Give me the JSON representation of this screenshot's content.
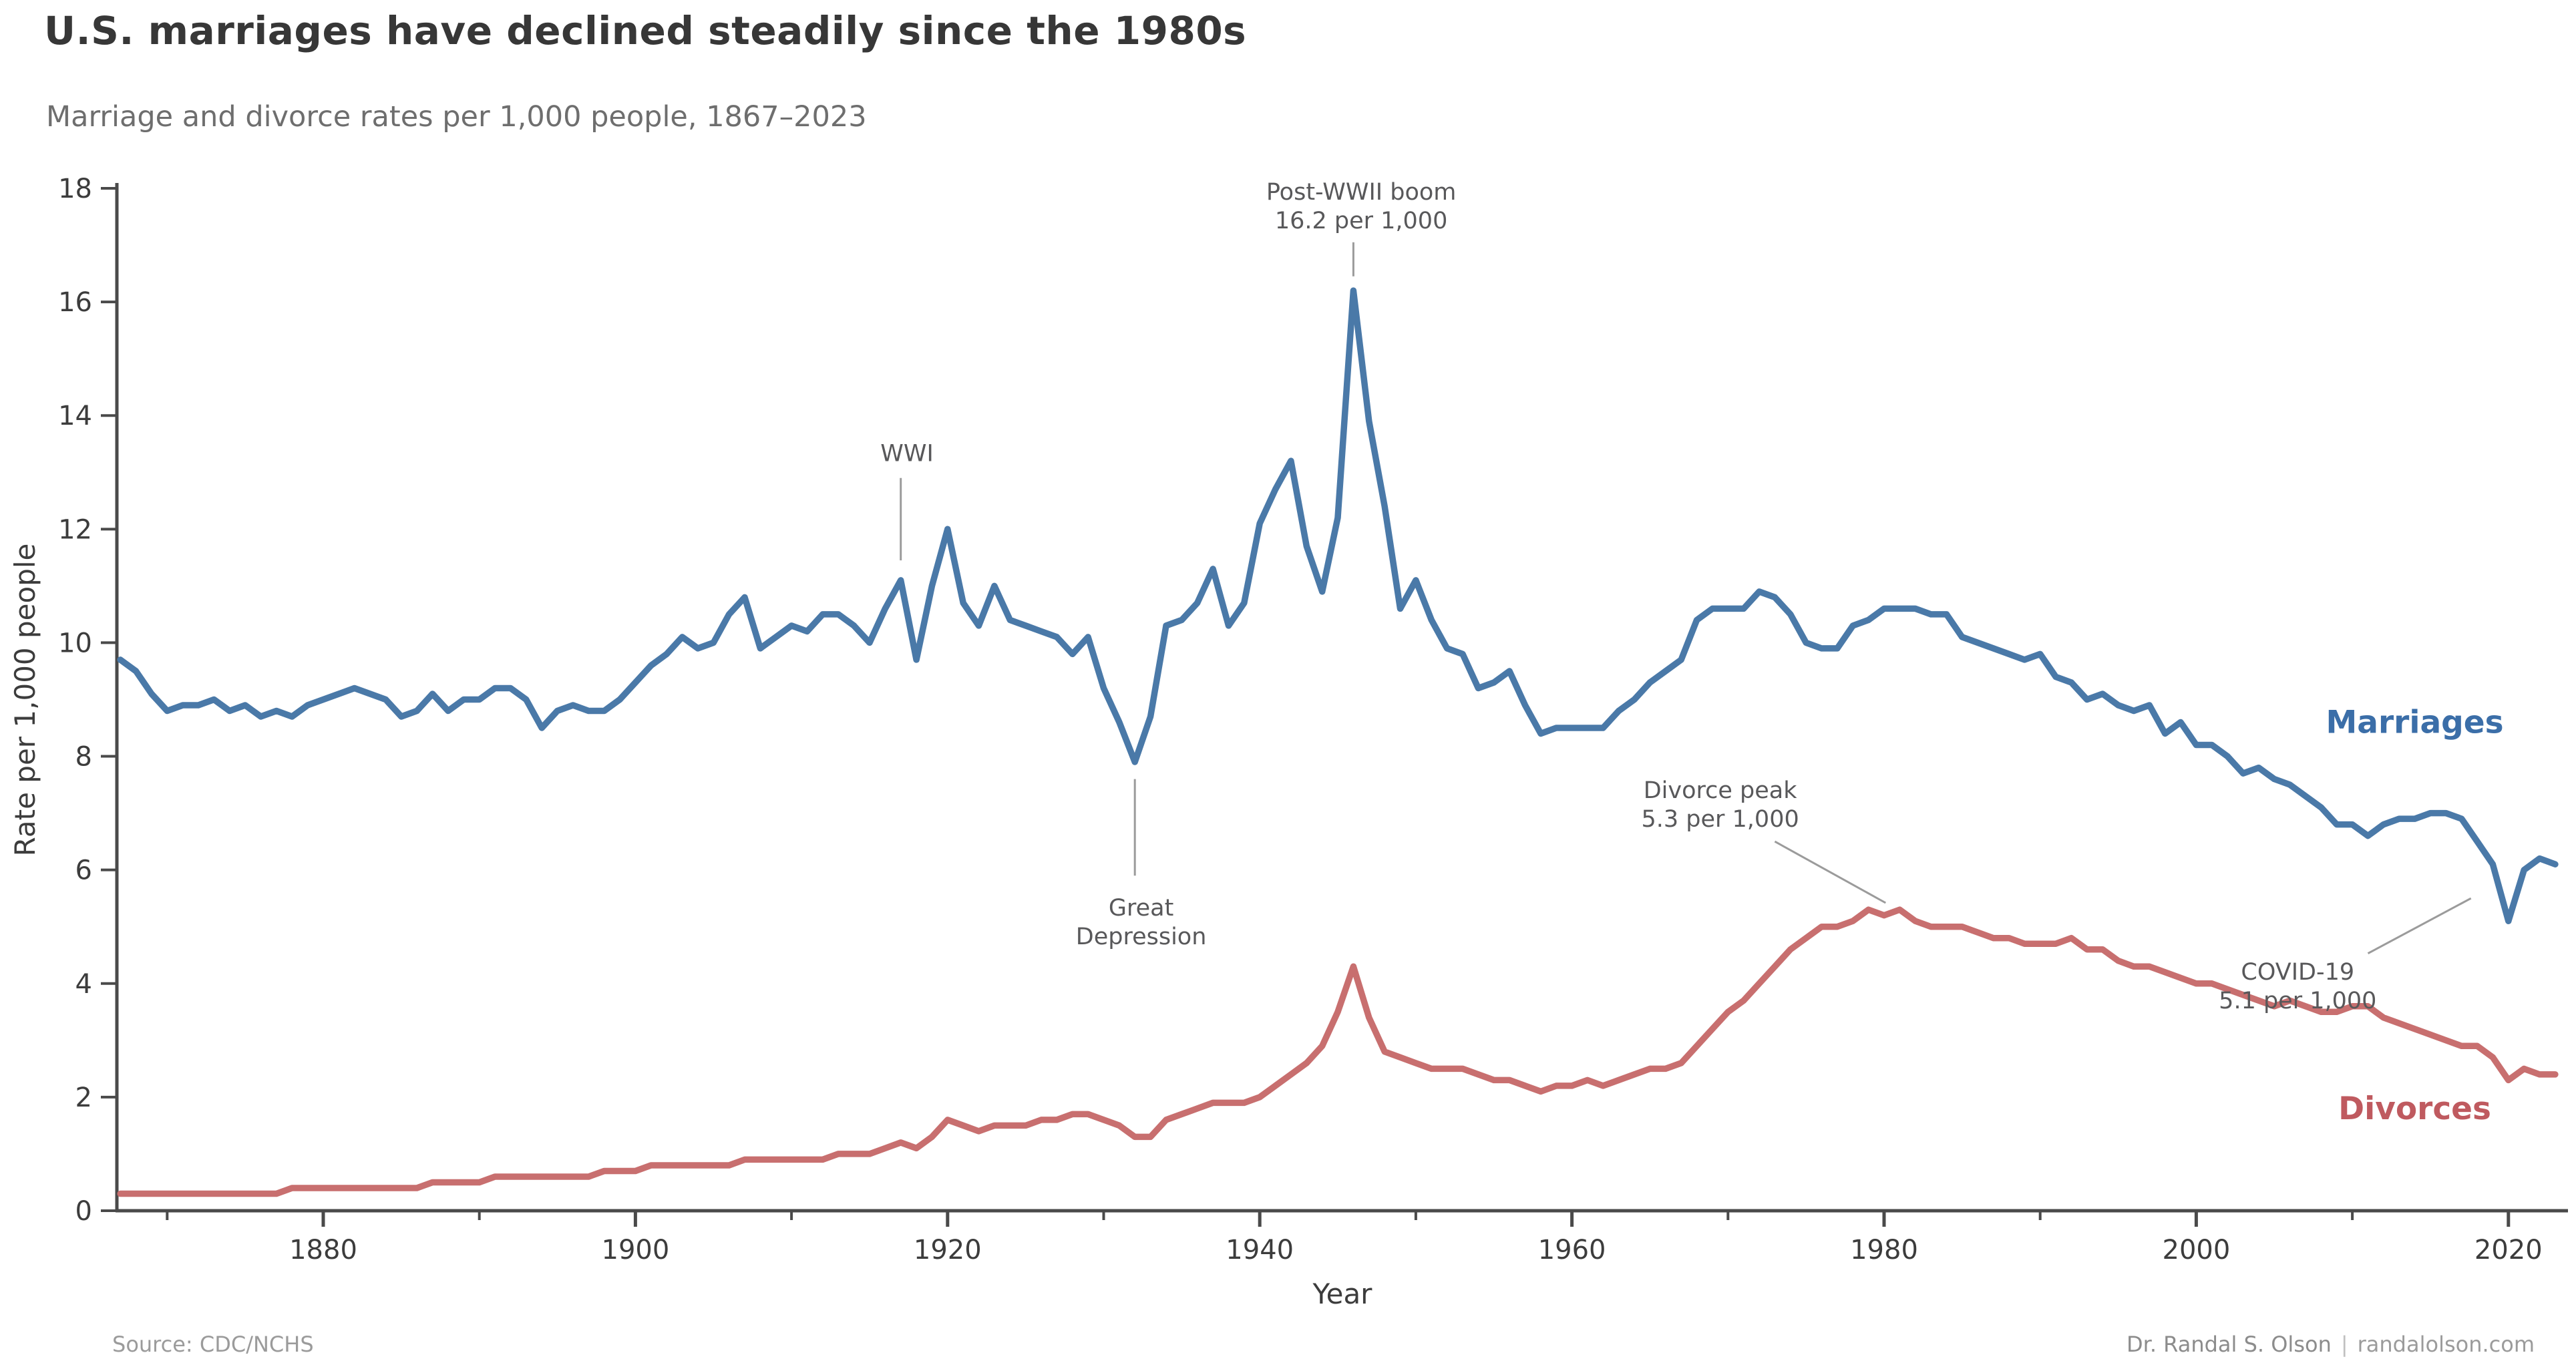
{
  "header": {
    "title": "U.S. marriages have declined steadily since the 1980s",
    "subtitle": "Marriage and divorce rates per 1,000 people, 1867–2023"
  },
  "footer": {
    "source": "Source: CDC/NCHS",
    "credit_name": "Dr. Randal S. Olson",
    "credit_sep": "|",
    "credit_site": "randalolson.com"
  },
  "colors": {
    "marriages": "#4a79a8",
    "marriages_label": "#3b6ea8",
    "divorces": "#c86f6f",
    "divorces_label": "#bf5a5f",
    "axis": "#4a4a4a",
    "tick_label": "#3c3c3c",
    "annotation_text": "#58585a",
    "leader_line": "#9b9b9b"
  },
  "chart_data": {
    "type": "line",
    "title": "U.S. marriages have declined steadily since the 1980s",
    "subtitle": "Marriage and divorce rates per 1,000 people, 1867–2023",
    "xlabel": "Year",
    "ylabel": "Rate per 1,000 people",
    "x_range": [
      1867,
      2023
    ],
    "x_step": 1,
    "ylim": [
      0,
      18
    ],
    "grid": false,
    "legend_position": "inline-end-labels",
    "x_major_ticks": [
      1880,
      1900,
      1920,
      1940,
      1960,
      1980,
      2000,
      2020
    ],
    "x_minor_ticks": [
      1870,
      1890,
      1910,
      1930,
      1950,
      1970,
      1990,
      2010
    ],
    "y_ticks": [
      0,
      2,
      4,
      6,
      8,
      10,
      12,
      14,
      16,
      18
    ],
    "series": [
      {
        "name": "Marriages",
        "color": "#4a79a8",
        "label_color": "#3b6ea8",
        "label_pos": {
          "year": 2014,
          "value": 8.6
        },
        "values": [
          9.7,
          9.5,
          9.1,
          8.8,
          8.9,
          8.9,
          9.0,
          8.8,
          8.9,
          8.7,
          8.8,
          8.7,
          8.9,
          9.0,
          9.1,
          9.2,
          9.1,
          9.0,
          8.7,
          8.8,
          9.1,
          8.8,
          9.0,
          9.0,
          9.2,
          9.2,
          9.0,
          8.5,
          8.8,
          8.9,
          8.8,
          8.8,
          9.0,
          9.3,
          9.6,
          9.8,
          10.1,
          9.9,
          10.0,
          10.5,
          10.8,
          9.9,
          10.1,
          10.3,
          10.2,
          10.5,
          10.5,
          10.3,
          10.0,
          10.6,
          11.1,
          9.7,
          11.0,
          12.0,
          10.7,
          10.3,
          11.0,
          10.4,
          10.3,
          10.2,
          10.1,
          9.8,
          10.1,
          9.2,
          8.6,
          7.9,
          8.7,
          10.3,
          10.4,
          10.7,
          11.3,
          10.3,
          10.7,
          12.1,
          12.7,
          13.2,
          11.7,
          10.9,
          12.2,
          16.2,
          13.9,
          12.4,
          10.6,
          11.1,
          10.4,
          9.9,
          9.8,
          9.2,
          9.3,
          9.5,
          8.9,
          8.4,
          8.5,
          8.5,
          8.5,
          8.5,
          8.8,
          9.0,
          9.3,
          9.5,
          9.7,
          10.4,
          10.6,
          10.6,
          10.6,
          10.9,
          10.8,
          10.5,
          10.0,
          9.9,
          9.9,
          10.3,
          10.4,
          10.6,
          10.6,
          10.6,
          10.5,
          10.5,
          10.1,
          10.0,
          9.9,
          9.8,
          9.7,
          9.8,
          9.4,
          9.3,
          9.0,
          9.1,
          8.9,
          8.8,
          8.9,
          8.4,
          8.6,
          8.2,
          8.2,
          8.0,
          7.7,
          7.8,
          7.6,
          7.5,
          7.3,
          7.1,
          6.8,
          6.8,
          6.6,
          6.8,
          6.9,
          6.9,
          7.0,
          7.0,
          6.9,
          6.5,
          6.1,
          5.1,
          6.0,
          6.2,
          6.1
        ]
      },
      {
        "name": "Divorces",
        "color": "#c86f6f",
        "label_color": "#bf5a5f",
        "label_pos": {
          "year": 2014,
          "value": 1.8
        },
        "values": [
          0.3,
          0.3,
          0.3,
          0.3,
          0.3,
          0.3,
          0.3,
          0.3,
          0.3,
          0.3,
          0.3,
          0.4,
          0.4,
          0.4,
          0.4,
          0.4,
          0.4,
          0.4,
          0.4,
          0.4,
          0.5,
          0.5,
          0.5,
          0.5,
          0.6,
          0.6,
          0.6,
          0.6,
          0.6,
          0.6,
          0.6,
          0.7,
          0.7,
          0.7,
          0.8,
          0.8,
          0.8,
          0.8,
          0.8,
          0.8,
          0.9,
          0.9,
          0.9,
          0.9,
          0.9,
          0.9,
          1.0,
          1.0,
          1.0,
          1.1,
          1.2,
          1.1,
          1.3,
          1.6,
          1.5,
          1.4,
          1.5,
          1.5,
          1.5,
          1.6,
          1.6,
          1.7,
          1.7,
          1.6,
          1.5,
          1.3,
          1.3,
          1.6,
          1.7,
          1.8,
          1.9,
          1.9,
          1.9,
          2.0,
          2.2,
          2.4,
          2.6,
          2.9,
          3.5,
          4.3,
          3.4,
          2.8,
          2.7,
          2.6,
          2.5,
          2.5,
          2.5,
          2.4,
          2.3,
          2.3,
          2.2,
          2.1,
          2.2,
          2.2,
          2.3,
          2.2,
          2.3,
          2.4,
          2.5,
          2.5,
          2.6,
          2.9,
          3.2,
          3.5,
          3.7,
          4.0,
          4.3,
          4.6,
          4.8,
          5.0,
          5.0,
          5.1,
          5.3,
          5.2,
          5.3,
          5.1,
          5.0,
          5.0,
          5.0,
          4.9,
          4.8,
          4.8,
          4.7,
          4.7,
          4.7,
          4.8,
          4.6,
          4.6,
          4.4,
          4.3,
          4.3,
          4.2,
          4.1,
          4.0,
          4.0,
          3.9,
          3.8,
          3.7,
          3.6,
          3.7,
          3.6,
          3.5,
          3.5,
          3.6,
          3.6,
          3.4,
          3.3,
          3.2,
          3.1,
          3.0,
          2.9,
          2.9,
          2.7,
          2.3,
          2.5,
          2.4,
          2.4
        ]
      }
    ],
    "annotations": [
      {
        "name": "wwi",
        "lines": [
          "WWI"
        ],
        "x": 1917.4,
        "y": 13.35,
        "leader": [
          [
            1917,
            12.9
          ],
          [
            1917,
            11.45
          ]
        ]
      },
      {
        "name": "post-wwii-boom",
        "lines": [
          "Post-WWII boom",
          "16.2 per 1,000"
        ],
        "x": 1946.5,
        "y": 17.95,
        "leader": [
          [
            1946,
            17.05
          ],
          [
            1946,
            16.45
          ]
        ]
      },
      {
        "name": "great-depression",
        "lines": [
          "Great",
          "Depression"
        ],
        "x": 1932.4,
        "y": 5.35,
        "leader": [
          [
            1932,
            7.6
          ],
          [
            1932,
            5.9
          ]
        ]
      },
      {
        "name": "divorce-peak",
        "lines": [
          "Divorce peak",
          "5.3 per 1,000"
        ],
        "x": 1969.5,
        "y": 7.42,
        "leader": [
          [
            1973.0,
            6.5
          ],
          [
            1980.1,
            5.42
          ]
        ]
      },
      {
        "name": "covid-19",
        "lines": [
          "COVID-19",
          "5.1 per 1,000"
        ],
        "x": 2006.5,
        "y": 4.22,
        "leader": [
          [
            2011.0,
            4.53
          ],
          [
            2017.6,
            5.5
          ]
        ]
      }
    ]
  }
}
